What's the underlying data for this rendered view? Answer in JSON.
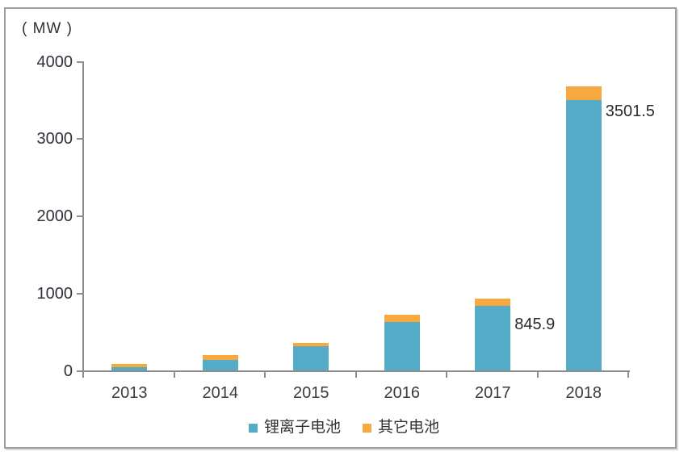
{
  "unit_label": "( MW )",
  "colors": {
    "lithium": "#55ACC8",
    "other": "#F7A83E",
    "axis": "#8C8C8C",
    "tick_text": "#30303A",
    "label_text": "#3B3B3B",
    "annotation_text": "#2B2B2B"
  },
  "chart_data": {
    "type": "bar",
    "stacked": true,
    "categories": [
      "2013",
      "2014",
      "2015",
      "2016",
      "2017",
      "2018"
    ],
    "series": [
      {
        "name": "锂离子电池",
        "color_key": "lithium",
        "values": [
          55,
          145,
          325,
          635,
          845.9,
          3501.5
        ]
      },
      {
        "name": "其它电池",
        "color_key": "other",
        "values": [
          35,
          65,
          35,
          90,
          90,
          185
        ]
      }
    ],
    "ylabel": "( MW )",
    "ylim": [
      0,
      4000
    ],
    "yticks": [
      0,
      1000,
      2000,
      3000,
      4000
    ],
    "grid": false,
    "legend_position": "bottom",
    "annotations": [
      {
        "text": "845.9",
        "value": 845.9,
        "category": "2017",
        "series": "锂离子电池"
      },
      {
        "text": "3501.5",
        "value": 3501.5,
        "category": "2018",
        "series": "锂离子电池"
      }
    ]
  }
}
